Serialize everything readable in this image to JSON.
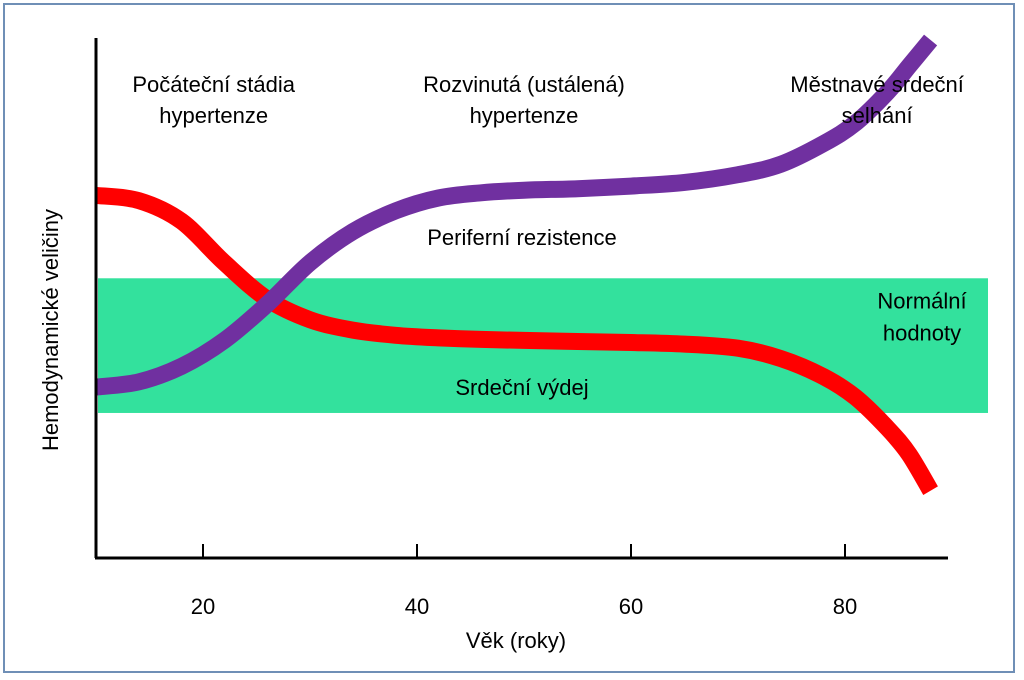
{
  "chart_data": {
    "type": "line",
    "xlabel": "Věk (roky)",
    "ylabel": "Hemodynamické veličiny",
    "xlim": [
      10,
      90
    ],
    "ylim": [
      0,
      100
    ],
    "xticks": [
      20,
      40,
      60,
      80
    ],
    "grid": false,
    "normal_band": {
      "label_lines": [
        "Normální",
        "hodnoty"
      ],
      "range": [
        28,
        54
      ],
      "color": "#33e19d"
    },
    "stage_labels": [
      {
        "lines": [
          "Počáteční stádia",
          "hypertenze"
        ],
        "x": 21
      },
      {
        "lines": [
          "Rozvinutá (ustálená)",
          "hypertenze"
        ],
        "x": 50
      },
      {
        "lines": [
          "Městnavé srdeční",
          "selhání"
        ],
        "x": 83
      }
    ],
    "series": [
      {
        "name": "Periferní rezistence",
        "color": "#7030a0",
        "x": [
          10,
          14,
          18,
          22,
          26,
          30,
          34,
          38,
          42,
          46,
          50,
          55,
          60,
          65,
          70,
          74,
          78,
          81,
          84,
          86,
          88
        ],
        "y": [
          33,
          34,
          37,
          42,
          49,
          57,
          63,
          67,
          69.5,
          70.5,
          71,
          71.3,
          71.8,
          72.5,
          74,
          76,
          80,
          84,
          90,
          95,
          100
        ]
      },
      {
        "name": "Srdeční výdej",
        "color": "#ff0000",
        "x": [
          10,
          14,
          18,
          22,
          26,
          30,
          34,
          38,
          42,
          46,
          50,
          55,
          60,
          65,
          70,
          74,
          78,
          81,
          84,
          86,
          88
        ],
        "y": [
          70,
          69,
          65,
          57,
          50,
          46,
          44,
          43,
          42.5,
          42.2,
          42,
          41.8,
          41.6,
          41.3,
          40.5,
          38.5,
          35,
          31,
          25,
          20,
          13
        ]
      }
    ],
    "series_labels": [
      {
        "text": "Periferní rezistence",
        "x": 50,
        "y": 62
      },
      {
        "text": "Srdeční výdej",
        "x": 50,
        "y": 33
      }
    ]
  }
}
